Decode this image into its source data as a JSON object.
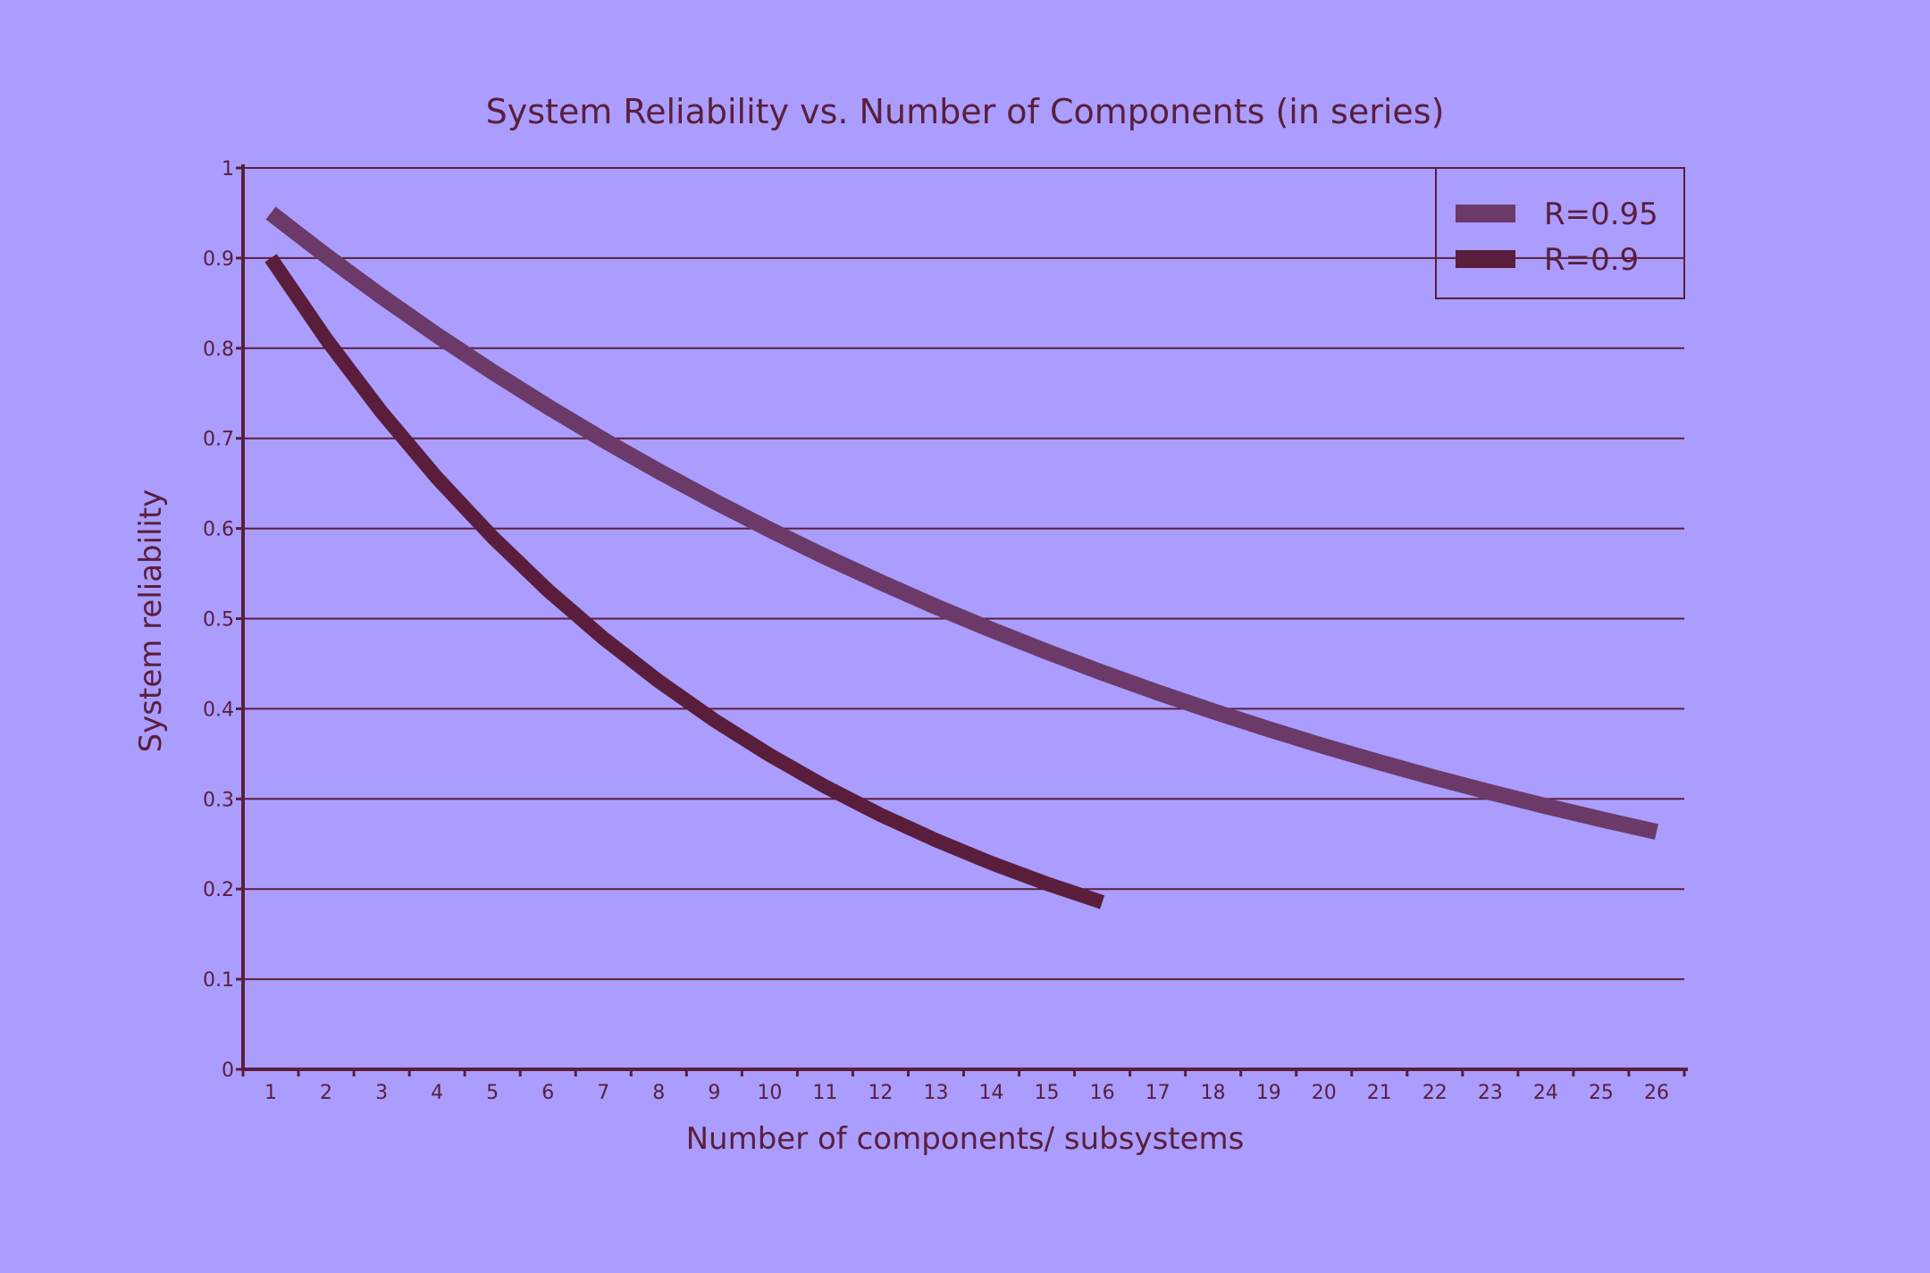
{
  "chart_data": {
    "type": "line",
    "title": "System Reliability vs. Number of Components (in series)",
    "xlabel": "Number of components/ subsystems",
    "ylabel": "System reliability",
    "xlim": [
      0.5,
      26.5
    ],
    "ylim": [
      0,
      1
    ],
    "x_ticks": [
      "1",
      "2",
      "3",
      "4",
      "5",
      "6",
      "7",
      "8",
      "9",
      "10",
      "11",
      "12",
      "13",
      "14",
      "15",
      "16",
      "17",
      "18",
      "19",
      "20",
      "21",
      "22",
      "23",
      "24",
      "25",
      "26"
    ],
    "y_ticks": [
      "0",
      "0.1",
      "0.2",
      "0.3",
      "0.4",
      "0.5",
      "0.6",
      "0.7",
      "0.8",
      "0.9",
      "1"
    ],
    "grid": "horizontal",
    "legend_position": "top-right",
    "series": [
      {
        "name": "R=0.95",
        "color": "#6b3a68",
        "x": [
          1,
          2,
          3,
          4,
          5,
          6,
          7,
          8,
          9,
          10,
          11,
          12,
          13,
          14,
          15,
          16,
          17,
          18,
          19,
          20,
          21,
          22,
          23,
          24,
          25,
          26
        ],
        "values": [
          0.95,
          0.9025,
          0.8574,
          0.8145,
          0.7738,
          0.7351,
          0.6983,
          0.6634,
          0.6302,
          0.5987,
          0.5688,
          0.5404,
          0.5133,
          0.4877,
          0.4633,
          0.4401,
          0.4181,
          0.3972,
          0.3774,
          0.3585,
          0.3406,
          0.3235,
          0.3074,
          0.292,
          0.2774,
          0.2635
        ]
      },
      {
        "name": "R=0.9",
        "color": "#5a1e3c",
        "x": [
          1,
          2,
          3,
          4,
          5,
          6,
          7,
          8,
          9,
          10,
          11,
          12,
          13,
          14,
          15,
          16
        ],
        "values": [
          0.9,
          0.81,
          0.729,
          0.6561,
          0.5905,
          0.5314,
          0.4783,
          0.4305,
          0.3874,
          0.3487,
          0.3138,
          0.2824,
          0.2542,
          0.2288,
          0.2059,
          0.1853
        ]
      }
    ],
    "colors": {
      "axis": "#5a1e3c",
      "grid": "#5a1e3c",
      "background": "#aa9dfd"
    }
  }
}
